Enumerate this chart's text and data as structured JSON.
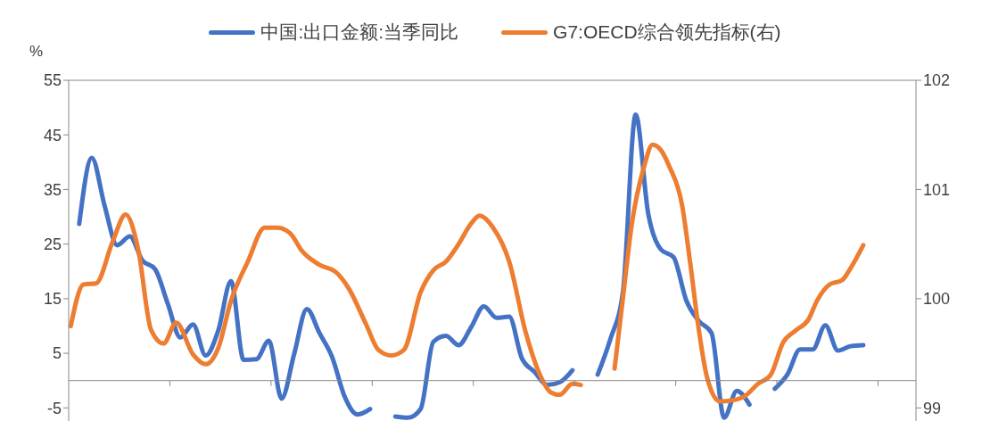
{
  "chart_data": {
    "type": "line",
    "ylabel": "%",
    "legend": "top",
    "categories": [
      null,
      null,
      null,
      null,
      null,
      null,
      null,
      null,
      null,
      null,
      null,
      null,
      null,
      null,
      null,
      null,
      null,
      null,
      null,
      null,
      null,
      null,
      null,
      null,
      null,
      null,
      null,
      null,
      null,
      null,
      null,
      null,
      null,
      null,
      null,
      null,
      null,
      null,
      null,
      null,
      null,
      null,
      null,
      null,
      null,
      null,
      null,
      null,
      null,
      null,
      null,
      null,
      null,
      null,
      null,
      null,
      null,
      null,
      null,
      null,
      null,
      null,
      null,
      null,
      null,
      null,
      null,
      null,
      null,
      null,
      null,
      null,
      null,
      null,
      null,
      null,
      null,
      null,
      null,
      null,
      null,
      null,
      null,
      null,
      null,
      null,
      null,
      null,
      null,
      null,
      null,
      null,
      null,
      null,
      null,
      null,
      null,
      null,
      null,
      null,
      null,
      null,
      null,
      null,
      null,
      null,
      null,
      null,
      null,
      null,
      null,
      null,
      null,
      null,
      null,
      null,
      null,
      null,
      null,
      null,
      null,
      null,
      null,
      null,
      null,
      null,
      null,
      null,
      null,
      null,
      null,
      null,
      null,
      null,
      null,
      null,
      null,
      null,
      null,
      null,
      null,
      null,
      null,
      null,
      null,
      null,
      null,
      null,
      null,
      null,
      null,
      null,
      null,
      null,
      null,
      null,
      null,
      null,
      null,
      null,
      null,
      null,
      null,
      null,
      null,
      null,
      null,
      null,
      null,
      null,
      null,
      null,
      null,
      null,
      null,
      null,
      null,
      null,
      null,
      null,
      null,
      null,
      null,
      null,
      null,
      null,
      null,
      null,
      null,
      null,
      null,
      null,
      null,
      null,
      null,
      null,
      null,
      null,
      null,
      null,
      null
    ],
    "ylim": [
      -7.4,
      55
    ],
    "yticks": [
      -5,
      5,
      15,
      25,
      35,
      45,
      55
    ],
    "y2lim": [
      98.88,
      102
    ],
    "y2ticks": [
      99,
      100,
      101,
      102
    ],
    "series": [
      {
        "name": "中国:出口金额:当季同比",
        "color": "#4472c4",
        "values": [
          null,
          null,
          28.7,
          null,
          null,
          40.8,
          null,
          null,
          32.1,
          null,
          null,
          24.8,
          null,
          null,
          26.4,
          null,
          null,
          22.0,
          null,
          null,
          20.4,
          null,
          null,
          14.1,
          null,
          null,
          7.9,
          null,
          null,
          10.3,
          null,
          null,
          4.6,
          null,
          null,
          9.2,
          null,
          null,
          18.2,
          null,
          null,
          3.8,
          null,
          null,
          3.9,
          null,
          null,
          7.3,
          null,
          null,
          -3.3,
          null,
          null,
          4.9,
          null,
          null,
          13.1,
          null,
          null,
          8.7,
          null,
          null,
          4.3,
          null,
          null,
          -3.0,
          null,
          null,
          -6.2,
          null,
          null,
          -5.2,
          null,
          null,
          null,
          null,
          null,
          -6.6,
          null,
          null,
          -6.8,
          null,
          null,
          -5.2,
          null,
          null,
          7.1,
          null,
          null,
          8.2,
          null,
          null,
          6.5,
          null,
          null,
          9.8,
          null,
          null,
          13.6,
          null,
          null,
          11.5,
          null,
          null,
          11.7,
          null,
          null,
          4.1,
          null,
          null,
          1.6,
          null,
          null,
          -0.8,
          null,
          null,
          -0.3,
          null,
          null,
          1.9,
          null,
          null,
          null,
          null,
          null,
          1.1,
          null,
          null,
          7.6,
          null,
          null,
          16.3,
          null,
          null,
          48.7,
          null,
          null,
          30.5,
          null,
          null,
          24.0,
          null,
          null,
          22.6,
          null,
          null,
          14.7,
          null,
          null,
          10.9,
          null,
          null,
          8.7,
          null,
          null,
          -6.8,
          null,
          null,
          -1.9,
          null,
          null,
          -4.4,
          null,
          null,
          null,
          null,
          null,
          -1.5,
          null,
          null,
          1.1,
          null,
          null,
          5.7,
          null,
          null,
          5.7,
          null,
          null,
          10.1,
          null,
          null,
          5.5,
          null,
          null,
          6.3,
          null,
          null,
          6.5,
          null,
          null,
          null,
          null,
          null,
          null,
          null,
          null,
          null,
          null,
          null,
          null
        ]
      },
      {
        "name": "G7:OECD综合领先指标(右)",
        "color": "#ed7d31",
        "axis": "y2",
        "values": [
          99.75,
          null,
          null,
          100.13,
          null,
          null,
          100.14,
          null,
          null,
          null,
          100.53,
          null,
          null,
          100.77,
          null,
          null,
          100.45,
          null,
          null,
          99.72,
          null,
          null,
          99.59,
          null,
          null,
          99.78,
          null,
          null,
          null,
          99.49,
          null,
          null,
          99.4,
          null,
          null,
          99.55,
          null,
          null,
          99.98,
          null,
          null,
          null,
          100.34,
          null,
          null,
          null,
          100.65,
          null,
          null,
          100.65,
          null,
          null,
          100.6,
          null,
          null,
          100.43,
          null,
          null,
          null,
          100.31,
          null,
          null,
          null,
          100.24,
          null,
          null,
          100.09,
          null,
          null,
          null,
          99.77,
          null,
          null,
          99.53,
          null,
          null,
          99.48,
          null,
          null,
          99.53,
          null,
          null,
          null,
          100.06,
          null,
          null,
          100.26,
          null,
          null,
          100.34,
          null,
          null,
          100.5,
          null,
          null,
          100.69,
          null,
          100.76,
          null,
          null,
          100.66,
          null,
          null,
          null,
          100.34,
          null,
          null,
          null,
          99.68,
          null,
          null,
          99.33,
          null,
          null,
          99.14,
          null,
          99.12,
          null,
          null,
          99.22,
          null,
          99.21,
          null,
          null,
          null,
          null,
          null,
          null,
          null,
          99.36,
          null,
          100.01,
          null,
          100.66,
          null,
          null,
          101.21,
          null,
          101.41,
          null,
          101.36,
          null,
          101.21,
          null,
          null,
          100.86,
          null,
          100.31,
          null,
          99.71,
          null,
          99.27,
          null,
          null,
          99.06,
          null,
          null,
          99.07,
          null,
          null,
          99.11,
          null,
          null,
          99.22,
          null,
          null,
          99.3,
          null,
          null,
          99.6,
          null,
          null,
          99.71,
          null,
          null,
          99.81,
          null,
          99.98,
          null,
          null,
          100.13,
          null,
          null,
          100.17,
          null,
          100.28,
          null,
          null,
          100.49,
          null,
          null,
          null,
          null,
          null,
          null,
          null,
          null,
          null,
          null,
          null,
          null
        ]
      }
    ]
  }
}
